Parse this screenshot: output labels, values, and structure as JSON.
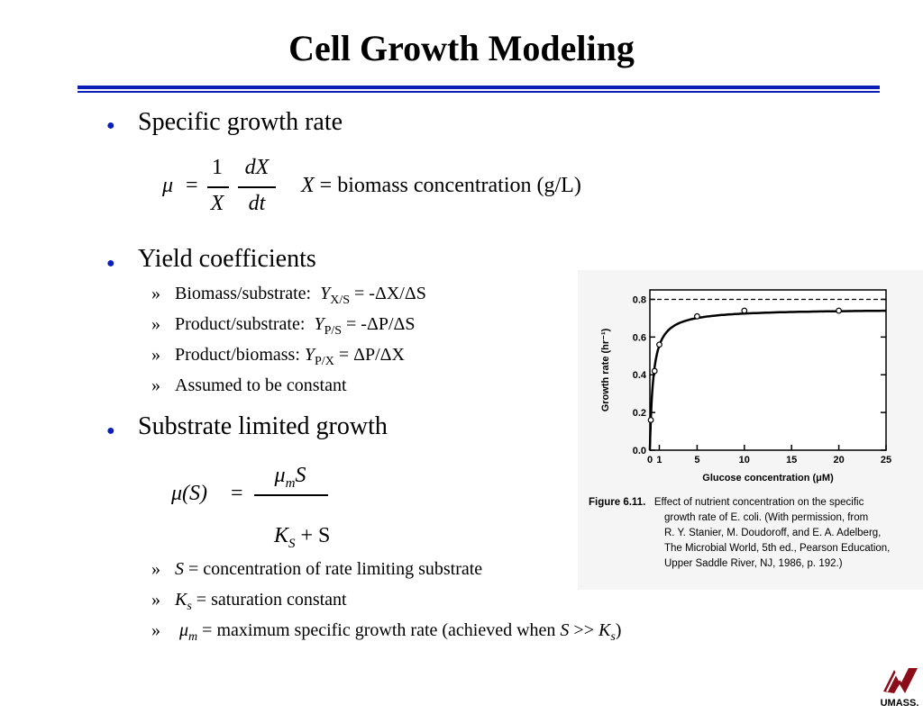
{
  "slide": {
    "title": "Cell Growth Modeling",
    "accent_color": "#0a1fb8"
  },
  "bullets": [
    {
      "text": "Specific growth rate"
    },
    {
      "text": "Yield coefficients"
    },
    {
      "text": "Substrate limited growth"
    }
  ],
  "equation1": {
    "lhs": "μ",
    "eq": "=",
    "num1": "1",
    "den1": "X",
    "num2": "dX",
    "den2": "dt",
    "def_var": "X",
    "def_eq": "=",
    "def_text": "biomass concentration (g/L)"
  },
  "yield_items": [
    {
      "mark": "»",
      "label": "Biomass/substrate:  ",
      "sym": "Y",
      "sub": "X/S",
      "rest": " = -ΔX/ΔS"
    },
    {
      "mark": "»",
      "label": "Product/substrate:  ",
      "sym": "Y",
      "sub": "P/S",
      "rest": " = -ΔP/ΔS"
    },
    {
      "mark": "»",
      "label": "Product/biomass: ",
      "sym": "Y",
      "sub": "P/X",
      "rest": " = ΔP/ΔX"
    },
    {
      "mark": "»",
      "text": "Assumed to be constant"
    }
  ],
  "equation2": {
    "lhs": "μ(S)",
    "eq": "=",
    "num": "μ",
    "num_sub": "m",
    "num_var": "S",
    "den_k": "K",
    "den_sub": "S",
    "den_rest": " + S"
  },
  "monod_items": [
    {
      "mark": "»",
      "sym": "S",
      "sub": "",
      "rest": " = concentration of rate limiting substrate"
    },
    {
      "mark": "»",
      "sym": "K",
      "sub": "s",
      "rest": " = saturation constant"
    },
    {
      "mark": "»",
      "sym": "μ",
      "sub": "m",
      "rest": " = maximum specific growth rate (achieved when ",
      "sym2": "S",
      "mid": " >> ",
      "sym3": "K",
      "sub3": "s",
      "tail": ")"
    }
  ],
  "figure": {
    "caption_label": "Figure 6.11.",
    "caption_lines": [
      "Effect of nutrient concentration on the specific",
      "growth rate  of E. coli. (With permission,  from",
      "R. Y. Stanier, M. Doudoroff, and E. A. Adelberg,",
      "The Microbial World, 5th ed., Pearson Education,",
      "Upper Saddle River, NJ, 1986, p. 192.)"
    ]
  },
  "chart_data": {
    "type": "line",
    "title": "",
    "xlabel": "Glucose concentration (μM)",
    "ylabel": "Growth rate (hr⁻¹)",
    "xlim": [
      0,
      25
    ],
    "ylim": [
      0,
      0.85
    ],
    "x_ticks": [
      "0",
      "1",
      "5",
      "10",
      "15",
      "20",
      "25"
    ],
    "y_ticks": [
      "0.0",
      "0.2",
      "0.4",
      "0.6",
      "0.8"
    ],
    "max_rate_line": 0.8,
    "series": [
      {
        "x": [
          0.1,
          0.5,
          1.0,
          5.0,
          10.0,
          20.0
        ],
        "y": [
          0.16,
          0.42,
          0.56,
          0.71,
          0.74,
          0.74
        ]
      }
    ]
  },
  "logo": {
    "text": "UMASS."
  }
}
